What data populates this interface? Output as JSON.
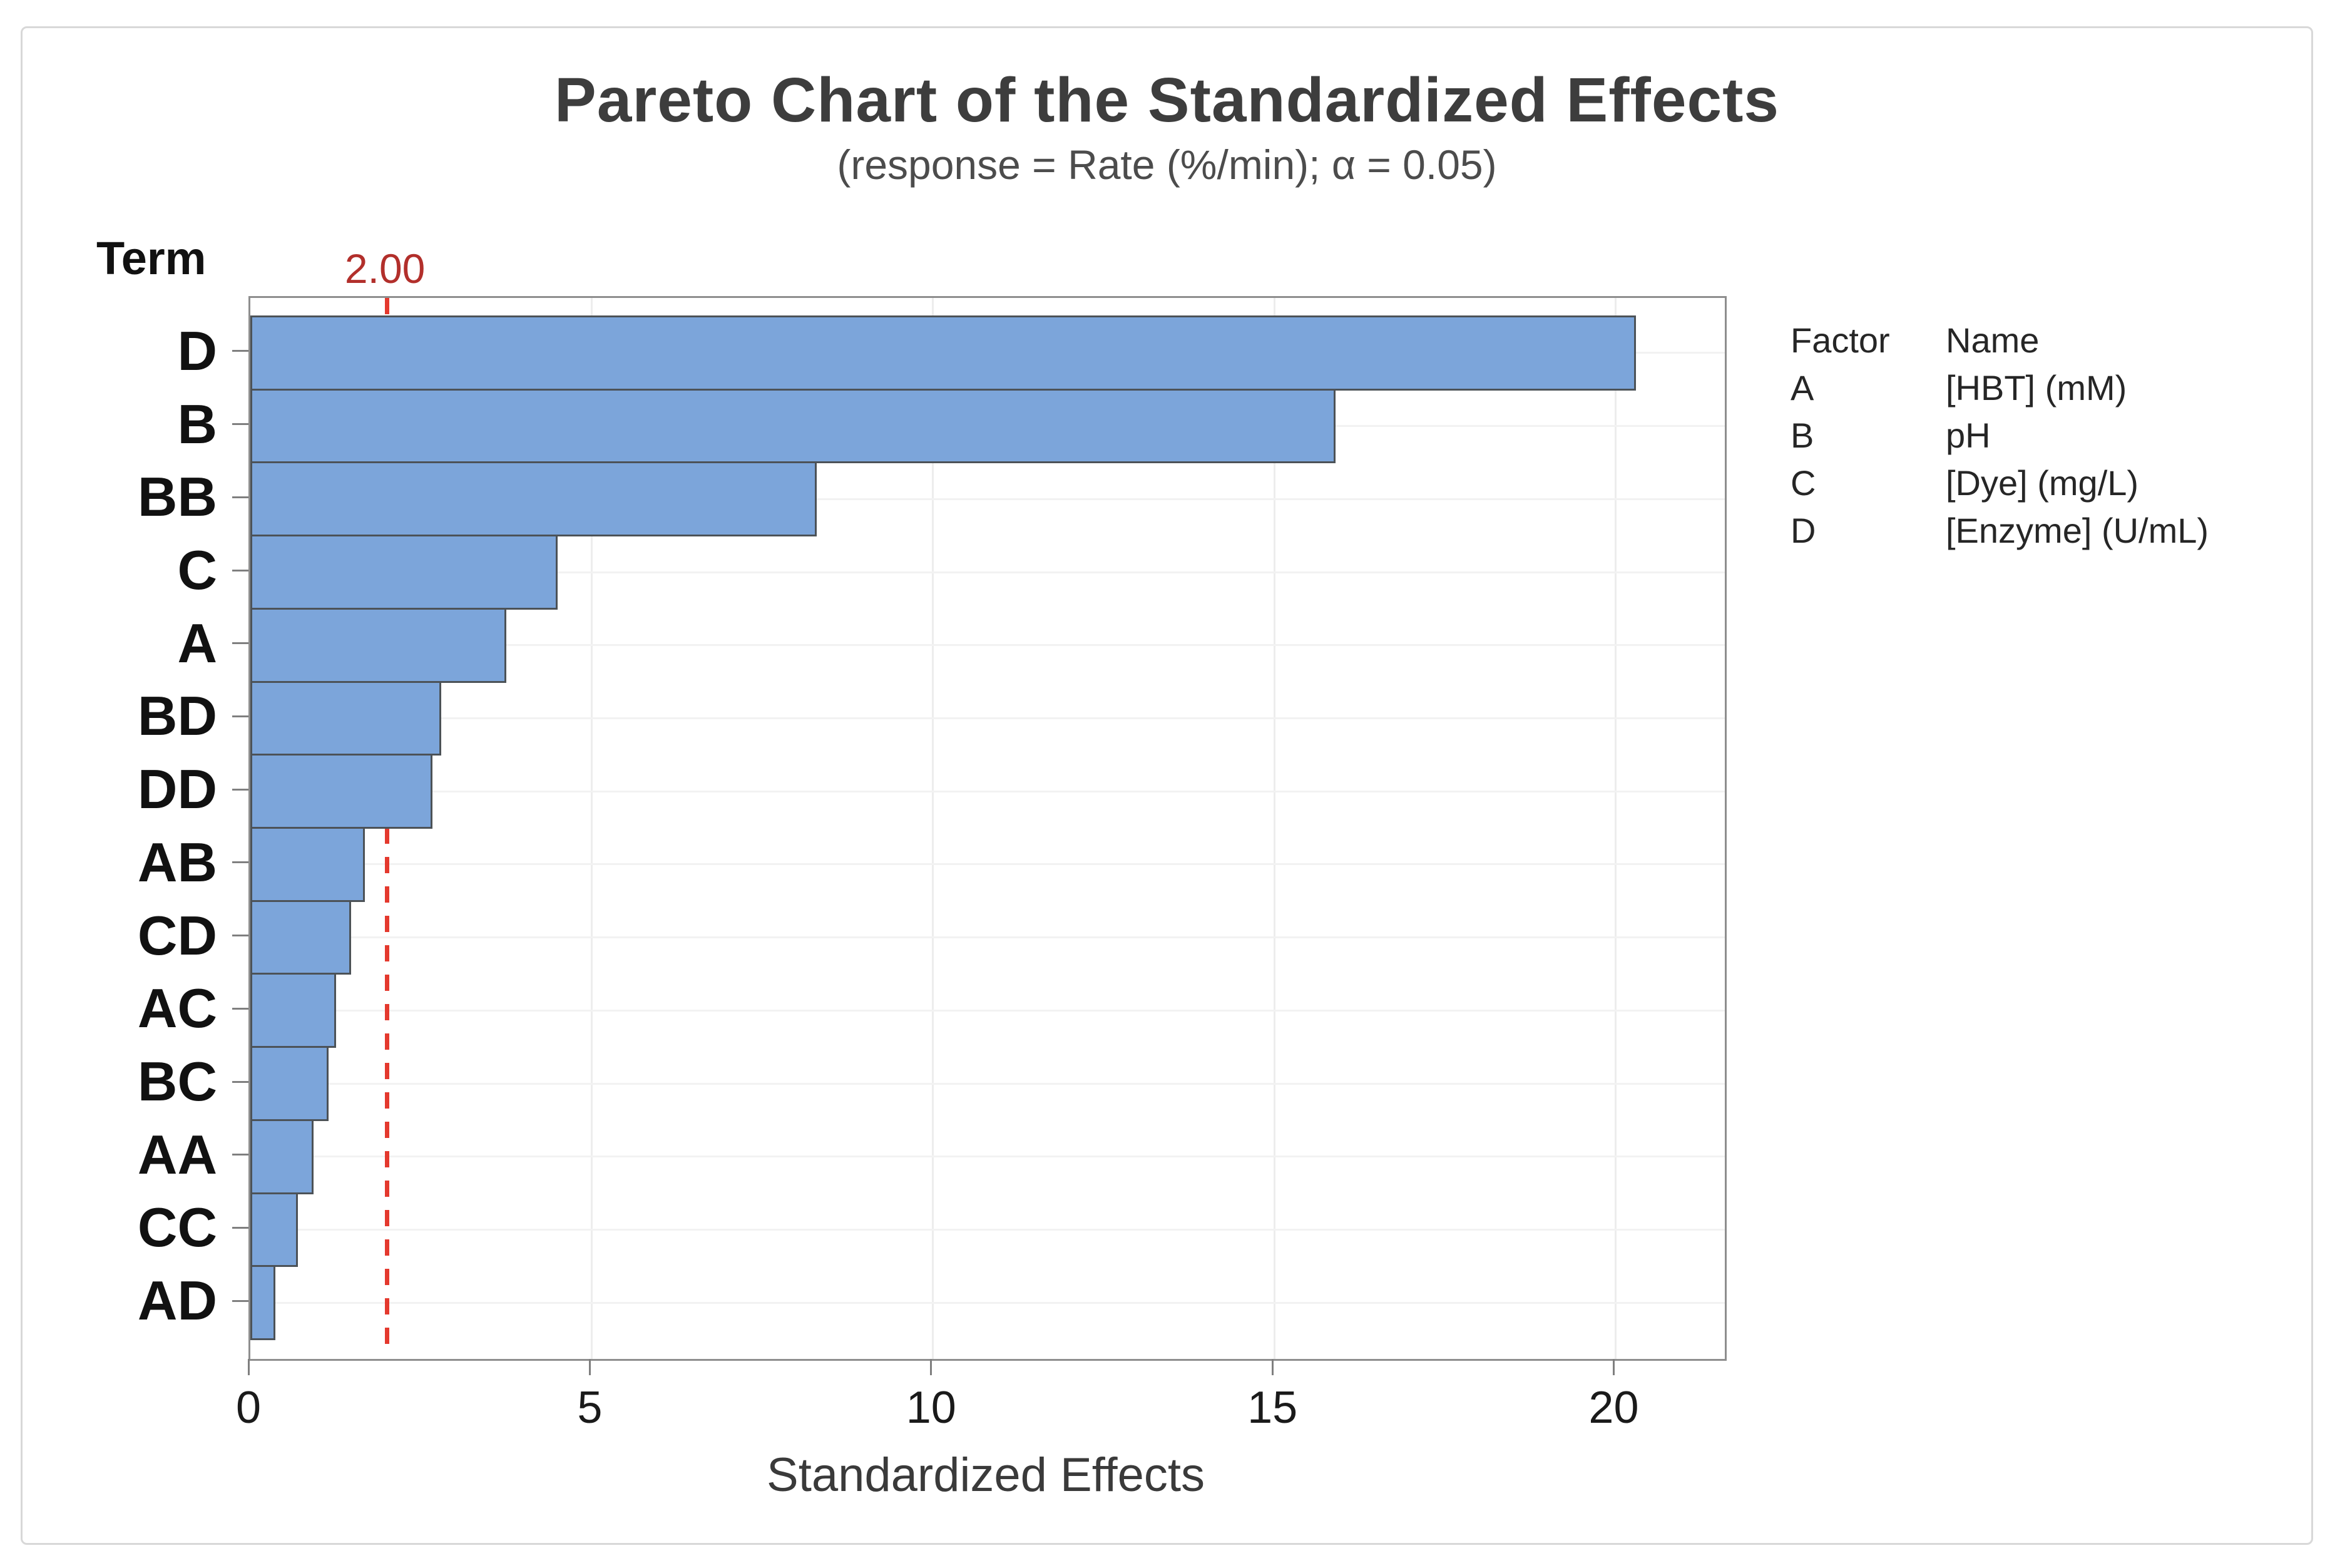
{
  "chart_data": {
    "type": "bar",
    "orientation": "horizontal",
    "title": "Pareto Chart of the Standardized Effects",
    "subtitle": "(response = Rate (%/min); α = 0.05)",
    "xlabel": "Standardized Effects",
    "y_axis_header": "Term",
    "categories": [
      "D",
      "B",
      "BB",
      "C",
      "A",
      "BD",
      "DD",
      "AB",
      "CD",
      "AC",
      "BC",
      "AA",
      "CC",
      "AD"
    ],
    "values": [
      20.3,
      15.9,
      8.3,
      4.5,
      3.75,
      2.8,
      2.67,
      1.68,
      1.48,
      1.26,
      1.15,
      0.93,
      0.7,
      0.37
    ],
    "x_ticks": [
      0,
      5,
      10,
      15,
      20
    ],
    "xlim": [
      0,
      21.6
    ],
    "grid": "ticks",
    "legend_position": "right",
    "reference_line": {
      "value": 2.0,
      "label": "2.00"
    },
    "colors": {
      "bar_fill": "#7ca5da",
      "bar_border": "#4c5257",
      "reference_line": "#e4392e",
      "reference_label": "#b22f2b",
      "axis": "#8e8e8e"
    }
  },
  "legend": {
    "header": {
      "factor": "Factor",
      "name": "Name"
    },
    "items": [
      {
        "factor": "A",
        "name": "[HBT] (mM)"
      },
      {
        "factor": "B",
        "name": "pH"
      },
      {
        "factor": "C",
        "name": "[Dye] (mg/L)"
      },
      {
        "factor": "D",
        "name": "[Enzyme] (U/mL)"
      }
    ]
  }
}
